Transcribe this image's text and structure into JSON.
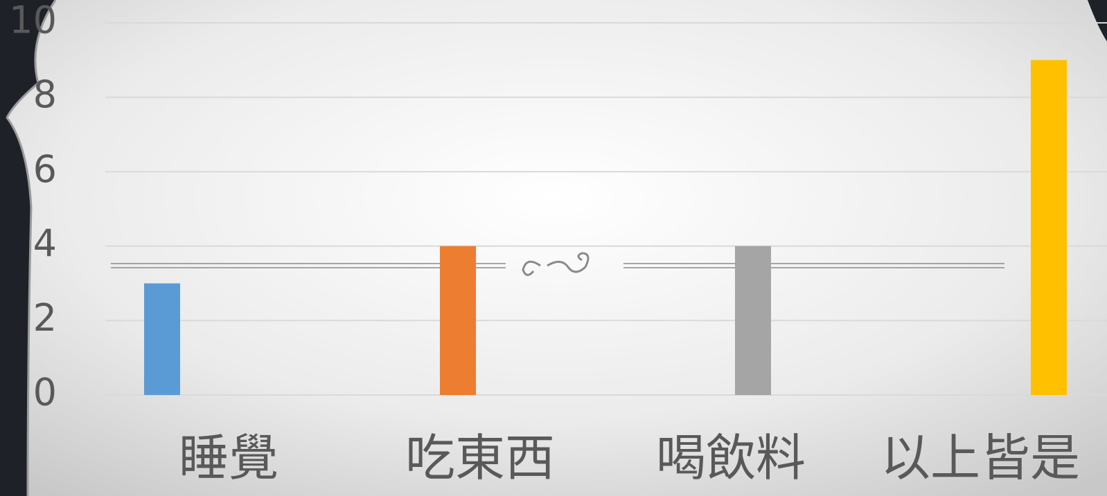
{
  "chart_data": {
    "type": "bar",
    "categories": [
      "睡覺",
      "吃東西",
      "喝飲料",
      "以上皆是"
    ],
    "values": [
      3,
      4,
      4,
      9
    ],
    "colors": [
      "#5b9bd5",
      "#ed7d31",
      "#a5a5a5",
      "#ffc000"
    ],
    "ylim": [
      0,
      10
    ],
    "yticks": [
      0,
      2,
      4,
      6,
      8,
      10
    ],
    "grid": true
  }
}
